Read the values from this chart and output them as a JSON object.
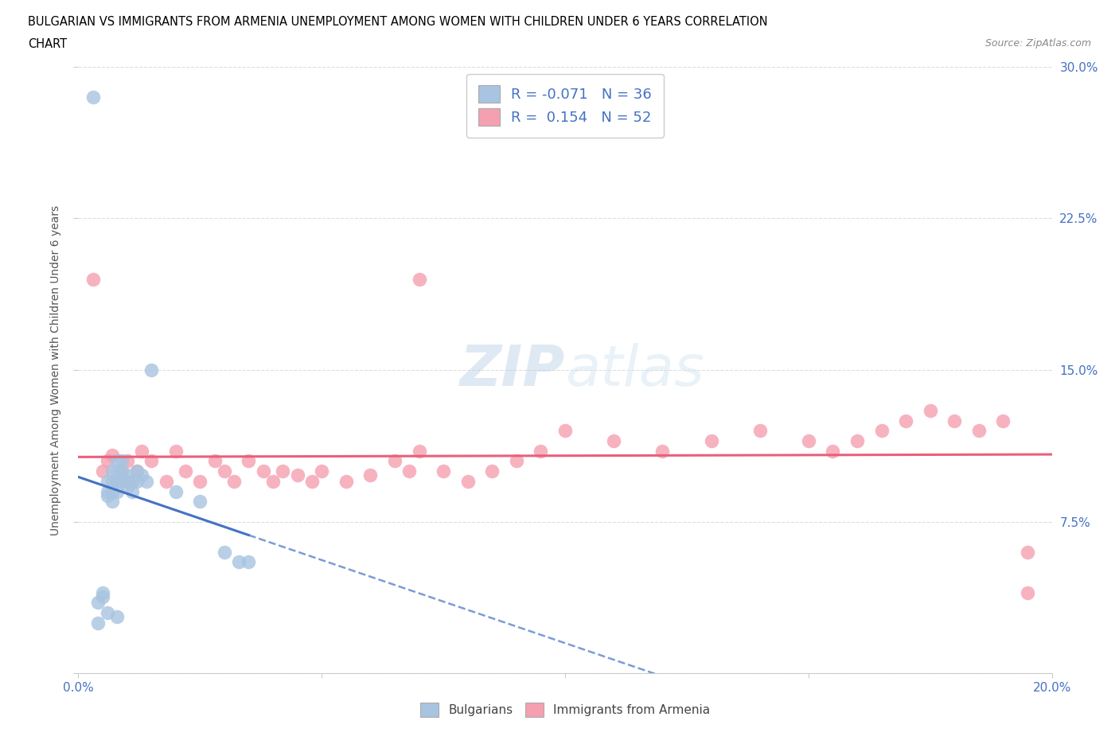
{
  "title_line1": "BULGARIAN VS IMMIGRANTS FROM ARMENIA UNEMPLOYMENT AMONG WOMEN WITH CHILDREN UNDER 6 YEARS CORRELATION",
  "title_line2": "CHART",
  "source": "Source: ZipAtlas.com",
  "ylabel": "Unemployment Among Women with Children Under 6 years",
  "bg_color": "#ffffff",
  "plot_bg_color": "#ffffff",
  "grid_color": "#dddddd",
  "watermark_text": "ZIPatlas",
  "bulgarian_color": "#a8c4e0",
  "armenian_color": "#f4a0b0",
  "blue_line_color": "#4472c4",
  "pink_line_color": "#e8607a",
  "legend_R1": "-0.071",
  "legend_N1": "36",
  "legend_R2": "0.154",
  "legend_N2": "52",
  "xlim": [
    0.0,
    0.2
  ],
  "ylim": [
    0.0,
    0.3
  ],
  "yticks": [
    0.0,
    0.075,
    0.15,
    0.225,
    0.3
  ],
  "ytick_labels": [
    "",
    "7.5%",
    "15.0%",
    "22.5%",
    "30.0%"
  ],
  "bulgarian_x": [
    0.003,
    0.004,
    0.005,
    0.005,
    0.006,
    0.006,
    0.006,
    0.007,
    0.007,
    0.007,
    0.007,
    0.008,
    0.008,
    0.008,
    0.008,
    0.009,
    0.009,
    0.009,
    0.01,
    0.01,
    0.01,
    0.011,
    0.011,
    0.012,
    0.012,
    0.013,
    0.014,
    0.015,
    0.02,
    0.025,
    0.03,
    0.033,
    0.035,
    0.004,
    0.006,
    0.008
  ],
  "bulgarian_y": [
    0.285,
    0.035,
    0.04,
    0.038,
    0.095,
    0.09,
    0.088,
    0.1,
    0.095,
    0.09,
    0.085,
    0.105,
    0.1,
    0.095,
    0.09,
    0.105,
    0.1,
    0.095,
    0.098,
    0.095,
    0.092,
    0.095,
    0.09,
    0.1,
    0.095,
    0.098,
    0.095,
    0.15,
    0.09,
    0.085,
    0.06,
    0.055,
    0.055,
    0.025,
    0.03,
    0.028
  ],
  "armenian_x": [
    0.003,
    0.005,
    0.006,
    0.007,
    0.008,
    0.009,
    0.01,
    0.011,
    0.012,
    0.013,
    0.015,
    0.018,
    0.02,
    0.022,
    0.025,
    0.028,
    0.03,
    0.032,
    0.035,
    0.038,
    0.04,
    0.042,
    0.045,
    0.048,
    0.05,
    0.055,
    0.06,
    0.065,
    0.068,
    0.07,
    0.075,
    0.08,
    0.085,
    0.09,
    0.095,
    0.1,
    0.11,
    0.12,
    0.13,
    0.14,
    0.15,
    0.155,
    0.16,
    0.165,
    0.17,
    0.175,
    0.18,
    0.185,
    0.19,
    0.195,
    0.07,
    0.195
  ],
  "armenian_y": [
    0.195,
    0.1,
    0.105,
    0.108,
    0.095,
    0.1,
    0.105,
    0.095,
    0.1,
    0.11,
    0.105,
    0.095,
    0.11,
    0.1,
    0.095,
    0.105,
    0.1,
    0.095,
    0.105,
    0.1,
    0.095,
    0.1,
    0.098,
    0.095,
    0.1,
    0.095,
    0.098,
    0.105,
    0.1,
    0.11,
    0.1,
    0.095,
    0.1,
    0.105,
    0.11,
    0.12,
    0.115,
    0.11,
    0.115,
    0.12,
    0.115,
    0.11,
    0.115,
    0.12,
    0.125,
    0.13,
    0.125,
    0.12,
    0.125,
    0.06,
    0.195,
    0.04
  ]
}
